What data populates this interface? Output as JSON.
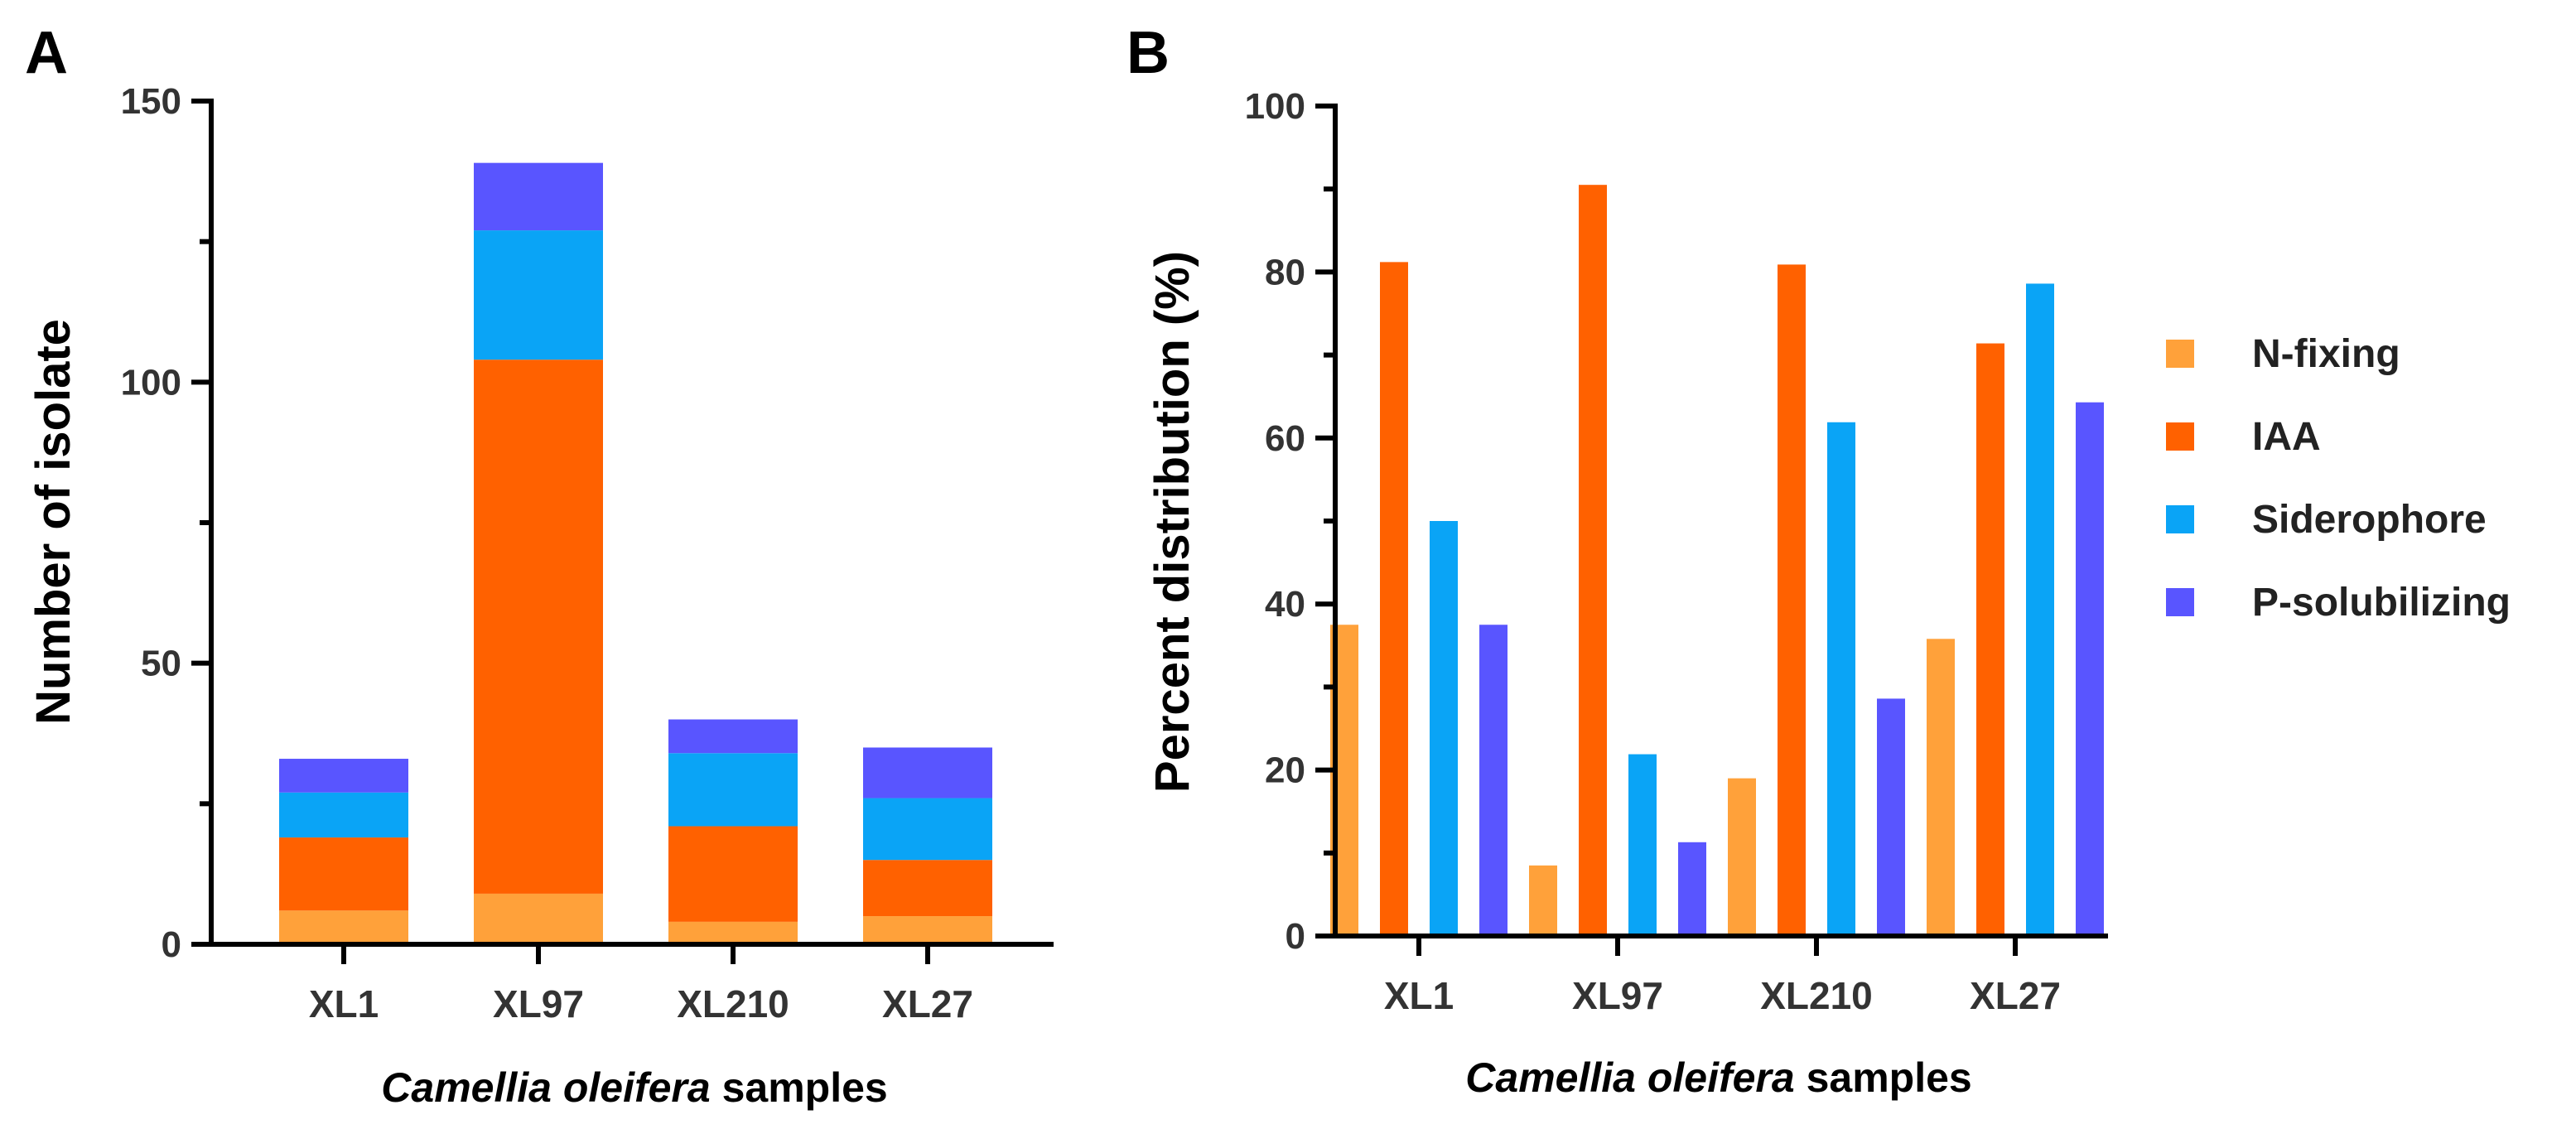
{
  "chart_data": [
    {
      "panel": "A",
      "type": "bar",
      "stacked": true,
      "title": "",
      "xlabel_italic": "Camellia oleifera",
      "xlabel_rest": " samples",
      "ylabel": "Number of isolate",
      "ylim": [
        0,
        150
      ],
      "yticks": [
        0,
        50,
        100,
        150
      ],
      "y_minor_step": 25,
      "categories": [
        "XL1",
        "XL97",
        "XL210",
        "XL27"
      ],
      "series": [
        {
          "name": "N-fixing",
          "color": "#FFA13A",
          "values": [
            6,
            9,
            4,
            5
          ]
        },
        {
          "name": "IAA",
          "color": "#FF6100",
          "values": [
            13,
            95,
            17,
            10
          ]
        },
        {
          "name": "Siderophore",
          "color": "#0AA4F6",
          "values": [
            8,
            23,
            13,
            11
          ]
        },
        {
          "name": "P-solubilizing",
          "color": "#5955FF",
          "values": [
            6,
            12,
            6,
            9
          ]
        }
      ]
    },
    {
      "panel": "B",
      "type": "bar",
      "stacked": false,
      "title": "",
      "xlabel_italic": "Camellia oleifera",
      "xlabel_rest": " samples",
      "ylabel": "Percent distribution (%)",
      "ylim": [
        0,
        100
      ],
      "yticks": [
        0,
        20,
        40,
        60,
        80,
        100
      ],
      "y_minor_step": 10,
      "categories": [
        "XL1",
        "XL97",
        "XL210",
        "XL27"
      ],
      "series": [
        {
          "name": "N-fixing",
          "color": "#FFA13A",
          "values": [
            37.5,
            8.5,
            19.0,
            35.8
          ]
        },
        {
          "name": "IAA",
          "color": "#FF6100",
          "values": [
            81.2,
            90.5,
            80.9,
            71.4
          ]
        },
        {
          "name": "Siderophore",
          "color": "#0AA4F6",
          "values": [
            50.0,
            21.9,
            61.9,
            78.6
          ]
        },
        {
          "name": "P-solubilizing",
          "color": "#5955FF",
          "values": [
            37.5,
            11.3,
            28.6,
            64.3
          ]
        }
      ],
      "legend_position": "right"
    }
  ]
}
